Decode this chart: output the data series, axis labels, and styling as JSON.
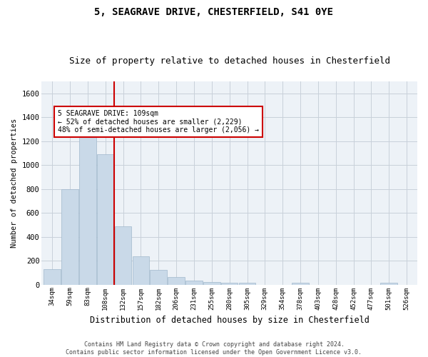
{
  "title_line1": "5, SEAGRAVE DRIVE, CHESTERFIELD, S41 0YE",
  "title_line2": "Size of property relative to detached houses in Chesterfield",
  "xlabel": "Distribution of detached houses by size in Chesterfield",
  "ylabel": "Number of detached properties",
  "footnote": "Contains HM Land Registry data © Crown copyright and database right 2024.\nContains public sector information licensed under the Open Government Licence v3.0.",
  "bar_labels": [
    "34sqm",
    "59sqm",
    "83sqm",
    "108sqm",
    "132sqm",
    "157sqm",
    "182sqm",
    "206sqm",
    "231sqm",
    "255sqm",
    "280sqm",
    "305sqm",
    "329sqm",
    "354sqm",
    "378sqm",
    "403sqm",
    "428sqm",
    "452sqm",
    "477sqm",
    "501sqm",
    "526sqm"
  ],
  "bar_values": [
    130,
    800,
    1300,
    1090,
    490,
    235,
    125,
    65,
    35,
    22,
    14,
    14,
    0,
    0,
    14,
    0,
    0,
    0,
    0,
    14,
    0
  ],
  "bar_color": "#c9d9e8",
  "bar_edgecolor": "#a0b8cc",
  "vline_x": 3.5,
  "vline_color": "#cc0000",
  "annotation_text": "5 SEAGRAVE DRIVE: 109sqm\n← 52% of detached houses are smaller (2,229)\n48% of semi-detached houses are larger (2,056) →",
  "annotation_box_color": "white",
  "annotation_box_edgecolor": "#cc0000",
  "ylim": [
    0,
    1700
  ],
  "yticks": [
    0,
    200,
    400,
    600,
    800,
    1000,
    1200,
    1400,
    1600
  ],
  "bg_color": "#edf2f7",
  "grid_color": "#c8d0da",
  "title1_fontsize": 10,
  "title2_fontsize": 9
}
